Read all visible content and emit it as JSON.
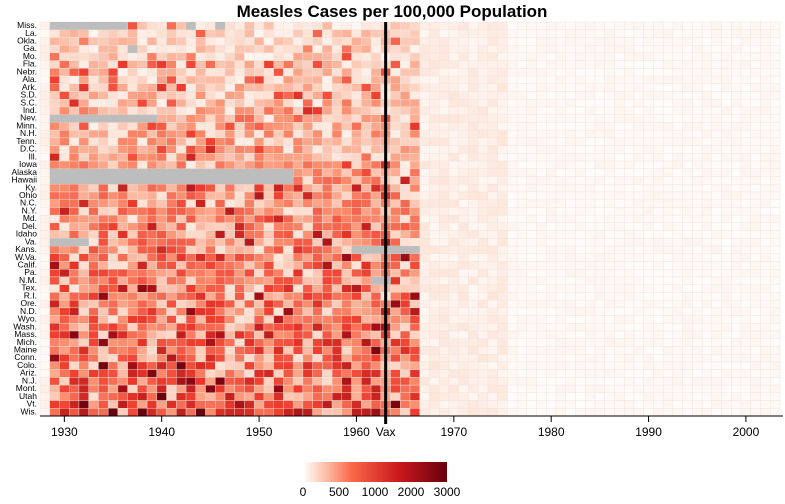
{
  "chart_data": {
    "type": "heatmap",
    "title": "Measles Cases per 100,000 Population",
    "states": [
      "Miss.",
      "La.",
      "Okla.",
      "Ga.",
      "Mo.",
      "Fla.",
      "Nebr.",
      "Ala.",
      "Ark.",
      "S.D.",
      "S.C.",
      "Ind.",
      "Nev.",
      "Minn.",
      "N.H.",
      "Tenn.",
      "D.C.",
      "Ill.",
      "Iowa",
      "Alaska",
      "Hawaii",
      "Ky.",
      "Ohio",
      "N.C.",
      "N.Y.",
      "Md.",
      "Del.",
      "Idaho",
      "Va.",
      "Kans.",
      "W.Va.",
      "Calif.",
      "Pa.",
      "N.M.",
      "Tex.",
      "R.I.",
      "Ore.",
      "N.D.",
      "Wyo.",
      "Wash.",
      "Mass.",
      "Mich.",
      "Maine",
      "Conn.",
      "Colo.",
      "Ariz.",
      "N.J.",
      "Mont.",
      "Utah",
      "Vt.",
      "Wis."
    ],
    "year_range": [
      1928,
      2003
    ],
    "x_ticks": [
      1930,
      1940,
      1950,
      1960,
      1970,
      1980,
      1990,
      2000
    ],
    "vaccine_year": 1963,
    "vaccine_label": "Vax",
    "missing_data": [
      {
        "state": "Miss.",
        "from": 1929,
        "to": 1936
      },
      {
        "state": "Miss.",
        "from": 1943,
        "to": 1943
      },
      {
        "state": "Miss.",
        "from": 1946,
        "to": 1946
      },
      {
        "state": "Ga.",
        "from": 1937,
        "to": 1937
      },
      {
        "state": "Nev.",
        "from": 1929,
        "to": 1939
      },
      {
        "state": "Alaska",
        "from": 1929,
        "to": 1953
      },
      {
        "state": "Hawaii",
        "from": 1929,
        "to": 1953
      },
      {
        "state": "Va.",
        "from": 1929,
        "to": 1932
      },
      {
        "state": "Kans.",
        "from": 1960,
        "to": 1966
      },
      {
        "state": "N.M.",
        "from": 1962,
        "to": 1963
      }
    ],
    "legend": {
      "ticks": [
        0,
        500,
        1000,
        2000,
        3000
      ],
      "colors": [
        "#ffffff",
        "#fcbba1",
        "#fb6a4a",
        "#cb181d",
        "#67000d"
      ]
    },
    "grid": true
  }
}
